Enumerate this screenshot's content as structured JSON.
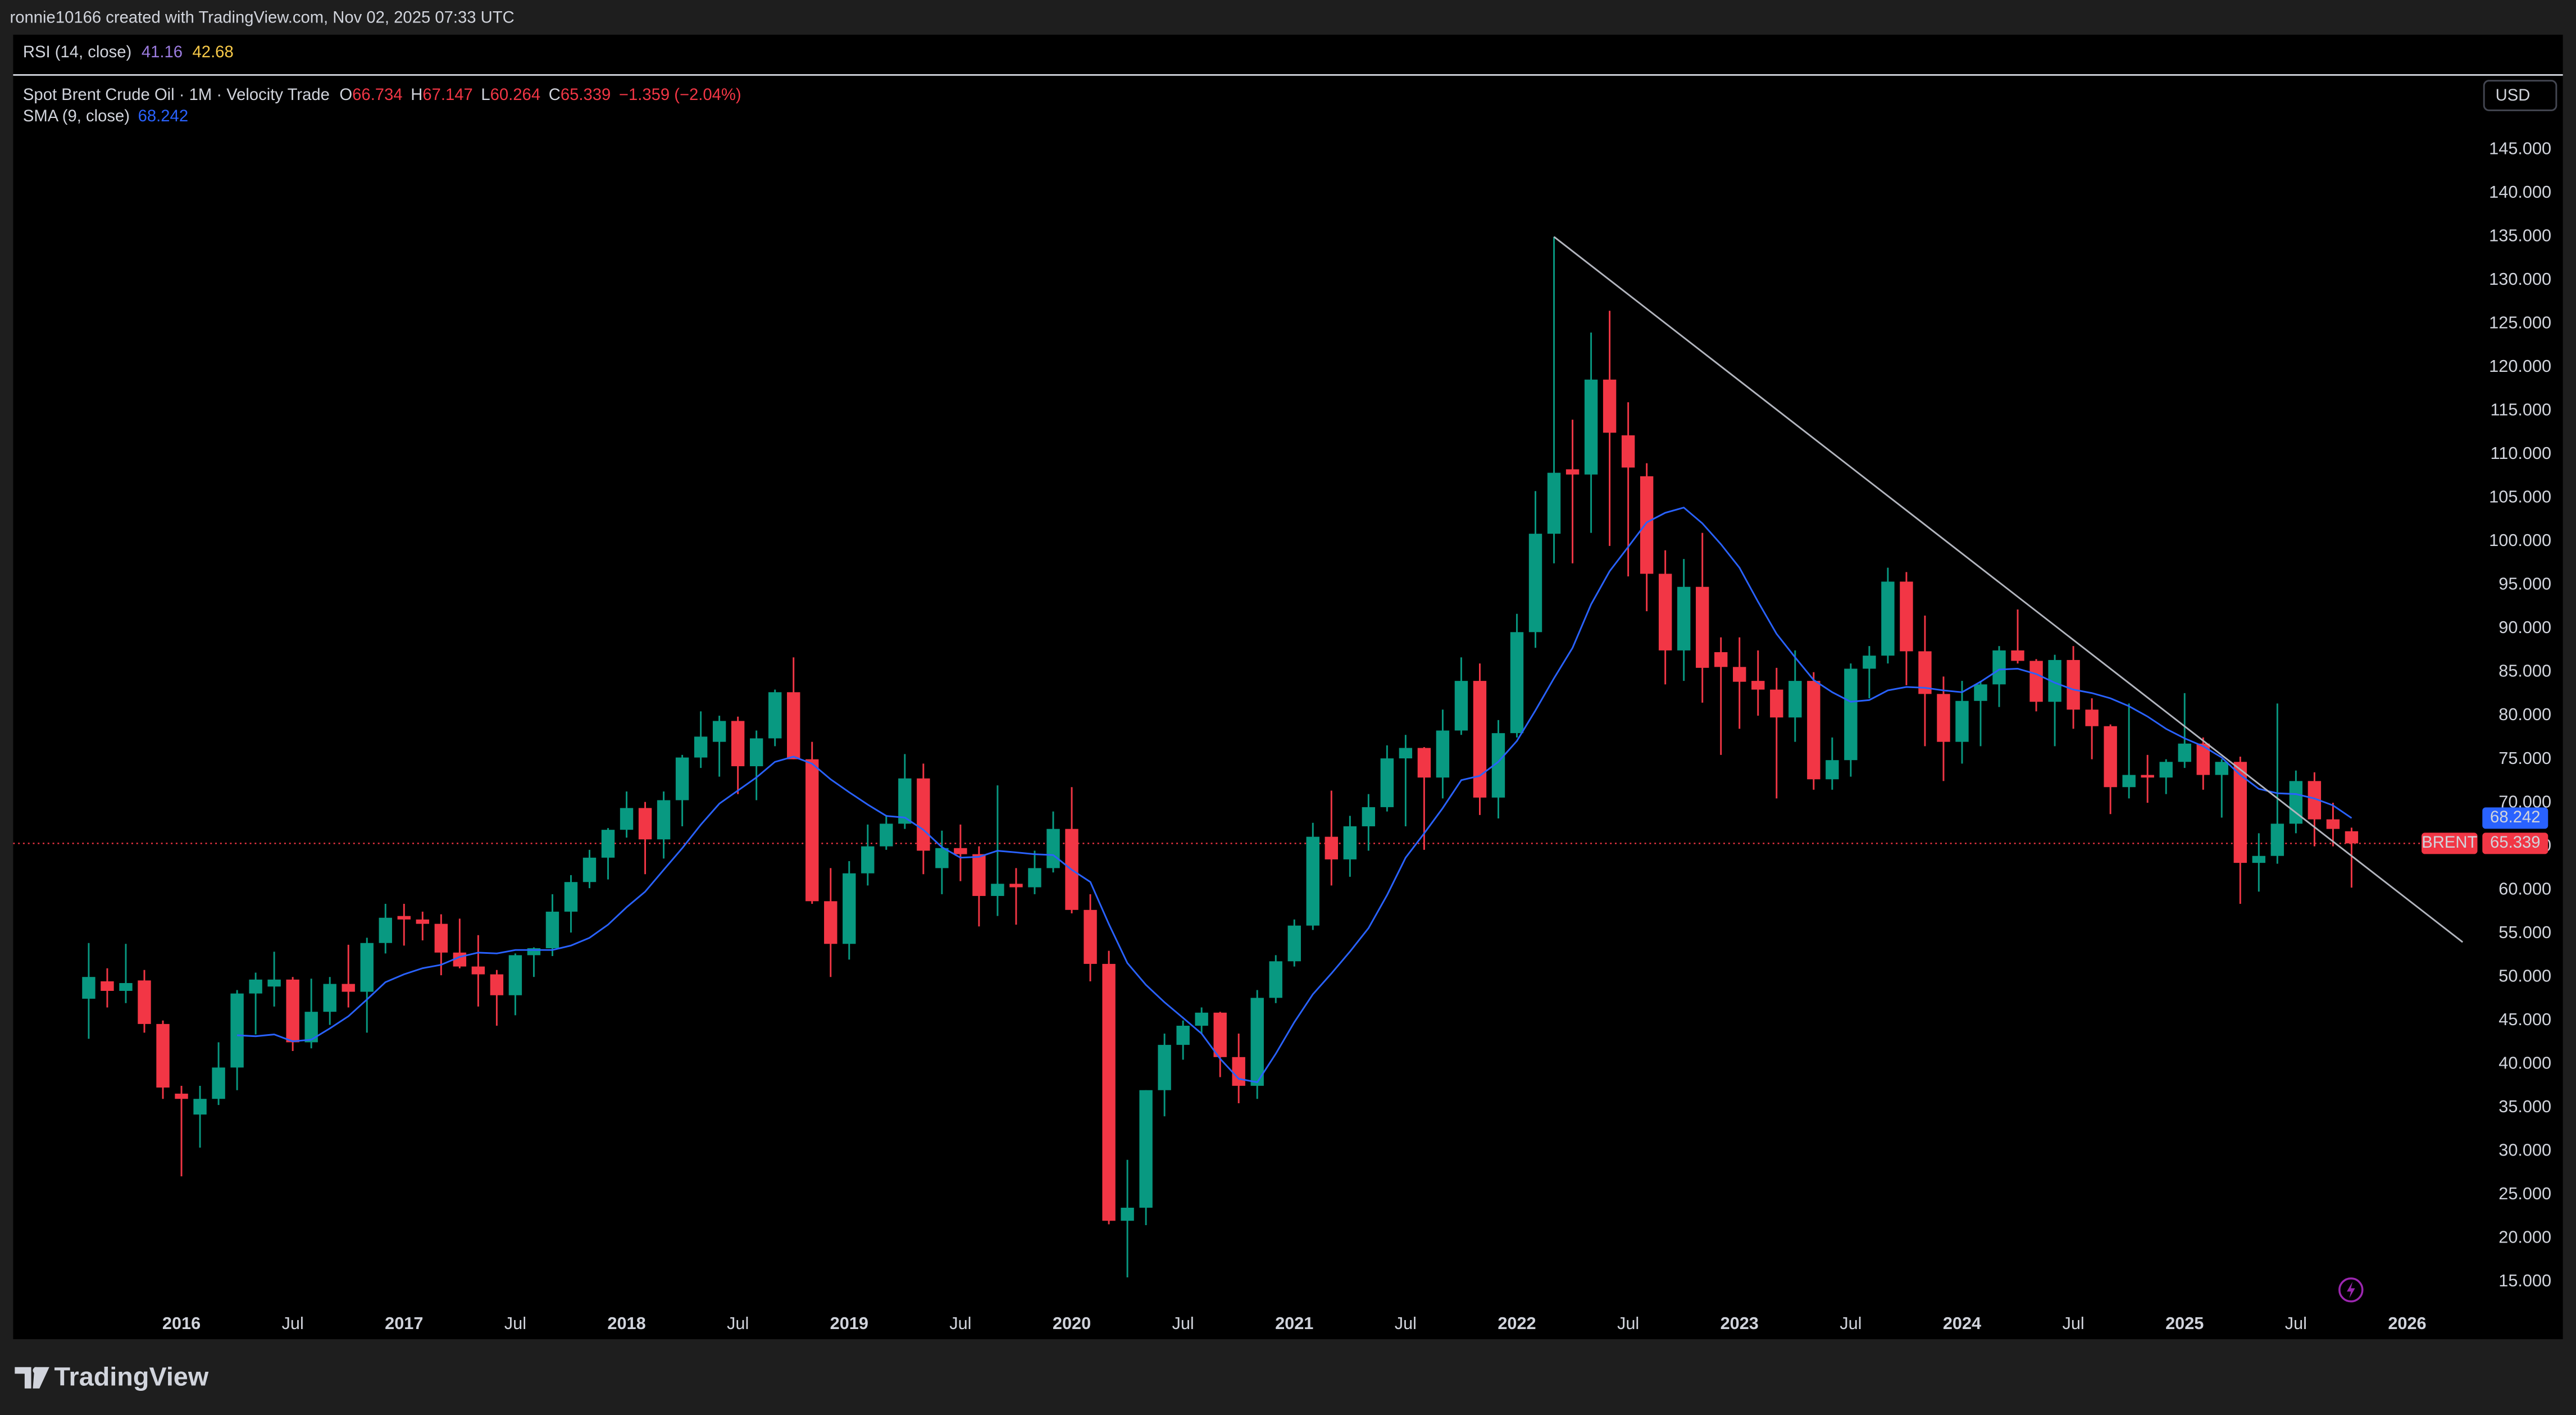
{
  "header": {
    "caption": "ronnie10166 created with TradingView.com, Nov 02, 2025 07:33 UTC"
  },
  "rsi": {
    "label": "RSI (14, close)",
    "values": [
      41.16,
      42.68
    ]
  },
  "footer": {
    "brand": "TradingView"
  },
  "chart_data": {
    "type": "candlestick",
    "title": "Spot Brent Crude Oil · 1M · Velocity Trade",
    "ohlc_keys": [
      "O",
      "H",
      "L",
      "C"
    ],
    "change_label": "−1.359 (−2.04%)",
    "currency": "USD",
    "categories": [
      null,
      null,
      null,
      null,
      null,
      "2016",
      null,
      null,
      null,
      null,
      null,
      "Jul",
      null,
      null,
      null,
      null,
      null,
      "2017",
      null,
      null,
      null,
      null,
      null,
      "Jul",
      null,
      null,
      null,
      null,
      null,
      "2018",
      null,
      null,
      null,
      null,
      null,
      "Jul",
      null,
      null,
      null,
      null,
      null,
      "2019",
      null,
      null,
      null,
      null,
      null,
      "Jul",
      null,
      null,
      null,
      null,
      null,
      "2020",
      null,
      null,
      null,
      null,
      null,
      "Jul",
      null,
      null,
      null,
      null,
      null,
      "2021",
      null,
      null,
      null,
      null,
      null,
      "Jul",
      null,
      null,
      null,
      null,
      null,
      "2022",
      null,
      null,
      null,
      null,
      null,
      "Jul",
      null,
      null,
      null,
      null,
      null,
      "2023",
      null,
      null,
      null,
      null,
      null,
      "Jul",
      null,
      null,
      null,
      null,
      null,
      "2024",
      null,
      null,
      null,
      null,
      null,
      "Jul",
      null,
      null,
      null,
      null,
      null,
      "2025",
      null,
      null,
      null,
      null,
      null,
      "Jul",
      null,
      null,
      null,
      null,
      null,
      "2026"
    ],
    "series": [
      {
        "name": "BRENT",
        "up_color": "#089981",
        "down_color": "#f23645",
        "open": [
          47.5,
          49.5,
          48.4,
          49.6,
          44.6,
          36.6,
          34.2,
          36.0,
          39.6,
          48.1,
          48.9,
          49.7,
          42.5,
          46.0,
          49.2,
          48.3,
          53.9,
          57.0,
          56.6,
          56.1,
          52.8,
          51.2,
          50.3,
          47.9,
          52.5,
          53.3,
          57.5,
          60.9,
          63.7,
          66.9,
          69.4,
          65.8,
          70.3,
          75.2,
          77.0,
          79.4,
          74.2,
          77.4,
          82.7,
          75.0,
          58.7,
          53.8,
          61.9,
          65.0,
          67.6,
          72.8,
          62.5,
          64.8,
          64.1,
          59.3,
          60.7,
          60.3,
          62.5,
          67.0,
          57.7,
          51.5,
          22.0,
          23.5,
          37.0,
          42.2,
          44.4,
          45.9,
          40.8,
          37.5,
          47.6,
          51.8,
          55.9,
          66.1,
          63.5,
          67.3,
          69.5,
          75.1,
          76.3,
          72.9,
          78.3,
          84.0,
          70.6,
          78.0,
          89.6,
          100.9,
          108.3,
          107.7,
          118.6,
          112.2,
          107.5,
          96.3,
          87.5,
          94.8,
          87.3,
          85.6,
          84.0,
          83.0,
          79.8,
          84.0,
          72.7,
          74.9,
          85.4,
          86.9,
          95.4,
          87.4,
          82.5,
          77.0,
          81.7,
          83.6,
          87.5,
          86.3,
          81.6,
          86.4,
          80.7,
          78.8,
          71.8,
          73.2,
          72.9,
          74.7,
          76.8,
          73.2,
          74.7,
          63.1,
          63.9,
          67.6,
          72.5,
          68.1,
          66.734,
          null,
          null,
          null
        ],
        "high": [
          53.9,
          51.0,
          53.8,
          50.8,
          45.0,
          37.5,
          37.5,
          42.5,
          48.5,
          50.5,
          52.9,
          50.0,
          49.8,
          50.0,
          53.7,
          54.5,
          58.4,
          58.4,
          57.5,
          57.2,
          56.7,
          54.8,
          50.8,
          52.7,
          53.4,
          59.5,
          61.7,
          64.6,
          67.1,
          71.3,
          70.1,
          71.3,
          75.5,
          80.5,
          80.0,
          79.9,
          78.3,
          83.0,
          86.7,
          77.0,
          62.5,
          63.3,
          67.5,
          68.6,
          75.6,
          74.5,
          66.8,
          67.5,
          65.0,
          72.0,
          62.5,
          64.5,
          69.0,
          71.8,
          59.5,
          53.0,
          29.0,
          37.0,
          43.5,
          45.0,
          46.5,
          46.0,
          43.5,
          48.5,
          52.5,
          56.6,
          67.7,
          71.4,
          68.5,
          71.0,
          76.6,
          77.8,
          76.4,
          80.7,
          86.7,
          86.0,
          79.5,
          91.7,
          105.8,
          135.0,
          114.0,
          124.0,
          126.5,
          116.0,
          109.0,
          99.0,
          98.0,
          101.0,
          89.0,
          89.0,
          87.5,
          85.5,
          87.5,
          85.0,
          77.5,
          86.0,
          88.0,
          97.0,
          96.5,
          91.5,
          84.5,
          84.0,
          84.0,
          88.0,
          92.2,
          86.5,
          87.0,
          88.0,
          82.0,
          79.0,
          81.4,
          75.5,
          75.0,
          82.6,
          77.5,
          75.0,
          75.3,
          66.5,
          81.4,
          73.7,
          73.5,
          70.0,
          67.147,
          null,
          null,
          null
        ],
        "low": [
          42.9,
          46.5,
          47.0,
          43.6,
          36.0,
          27.1,
          30.4,
          35.3,
          37.0,
          43.4,
          46.6,
          41.5,
          41.8,
          44.5,
          46.5,
          43.6,
          52.7,
          53.6,
          54.2,
          50.2,
          51.0,
          46.6,
          44.4,
          45.6,
          50.0,
          52.4,
          55.1,
          60.2,
          61.2,
          66.0,
          61.8,
          63.6,
          67.3,
          74.0,
          73.0,
          71.0,
          70.3,
          76.5,
          75.0,
          58.4,
          50.0,
          52.0,
          60.5,
          64.6,
          67.0,
          61.8,
          59.5,
          61.0,
          55.8,
          57.0,
          56.0,
          59.5,
          62.0,
          57.3,
          49.5,
          21.6,
          15.5,
          21.5,
          34.0,
          40.5,
          43.5,
          38.5,
          35.5,
          36.0,
          47.0,
          51.2,
          55.4,
          60.5,
          61.5,
          64.5,
          69.0,
          67.3,
          64.6,
          70.5,
          77.8,
          68.6,
          68.2,
          77.5,
          87.8,
          97.5,
          97.5,
          101.0,
          99.5,
          96.0,
          92.0,
          83.6,
          84.0,
          81.5,
          75.5,
          78.5,
          80.0,
          70.5,
          77.0,
          71.5,
          71.5,
          73.0,
          82.0,
          86.0,
          83.5,
          76.5,
          72.5,
          74.5,
          76.5,
          81.0,
          86.0,
          80.5,
          76.5,
          78.5,
          75.0,
          68.7,
          70.5,
          70.0,
          71.0,
          74.0,
          71.5,
          68.3,
          58.4,
          59.8,
          63.0,
          66.5,
          65.0,
          65.0,
          60.264,
          null,
          null,
          null
        ],
        "close": [
          50.0,
          48.4,
          49.3,
          44.6,
          37.3,
          36.0,
          36.0,
          39.6,
          48.1,
          49.7,
          49.7,
          42.5,
          46.0,
          49.2,
          48.3,
          53.9,
          56.8,
          56.6,
          56.1,
          52.8,
          51.2,
          50.3,
          47.9,
          52.5,
          53.3,
          57.5,
          60.9,
          63.7,
          66.9,
          69.4,
          65.8,
          70.3,
          75.2,
          77.6,
          79.4,
          74.2,
          77.4,
          82.7,
          75.0,
          58.7,
          53.8,
          61.9,
          65.0,
          67.6,
          72.8,
          64.5,
          64.8,
          64.1,
          59.3,
          60.7,
          60.3,
          62.5,
          67.0,
          57.7,
          51.5,
          22.0,
          23.5,
          37.0,
          42.2,
          44.4,
          45.9,
          40.8,
          37.5,
          47.6,
          51.8,
          55.9,
          66.1,
          63.5,
          67.3,
          69.5,
          75.1,
          76.3,
          72.9,
          78.3,
          84.0,
          70.6,
          78.0,
          89.6,
          100.9,
          107.9,
          107.7,
          118.6,
          112.5,
          108.5,
          96.3,
          87.5,
          94.8,
          85.5,
          85.6,
          83.9,
          83.0,
          79.8,
          84.0,
          72.7,
          74.9,
          85.4,
          86.9,
          95.4,
          87.4,
          82.5,
          77.0,
          81.7,
          83.6,
          87.5,
          86.3,
          81.6,
          86.4,
          80.7,
          78.8,
          71.8,
          73.2,
          72.9,
          74.7,
          76.8,
          73.2,
          74.7,
          63.1,
          63.9,
          67.6,
          72.5,
          68.1,
          67.0,
          65.339,
          null,
          null,
          null
        ]
      }
    ],
    "sma": {
      "name": "SMA (9, close)",
      "color": "#2962ff",
      "values": [
        null,
        null,
        null,
        null,
        null,
        null,
        null,
        null,
        43.3,
        43.2,
        43.4,
        42.6,
        42.8,
        44.1,
        45.5,
        47.4,
        49.4,
        50.3,
        51.0,
        51.4,
        52.3,
        52.8,
        52.7,
        53.1,
        53.1,
        53.1,
        53.6,
        54.5,
        56.0,
        58.0,
        59.8,
        62.3,
        64.8,
        67.5,
        69.9,
        71.4,
        72.9,
        74.7,
        75.3,
        74.5,
        72.7,
        71.2,
        69.8,
        68.5,
        68.3,
        66.9,
        64.9,
        63.7,
        63.8,
        64.5,
        64.3,
        64.1,
        64.0,
        62.3,
        60.9,
        56.1,
        51.6,
        49.1,
        47.1,
        45.3,
        43.5,
        40.6,
        38.3,
        37.9,
        41.2,
        44.8,
        48.0,
        50.4,
        52.9,
        55.6,
        59.4,
        63.7,
        66.5,
        69.4,
        72.6,
        73.1,
        74.7,
        77.1,
        80.6,
        84.3,
        87.8,
        92.8,
        96.6,
        99.4,
        102.2,
        103.3,
        103.9,
        102.1,
        99.7,
        97.0,
        93.1,
        89.4,
        86.7,
        84.1,
        82.7,
        81.6,
        81.8,
        82.9,
        83.3,
        83.2,
        82.9,
        82.7,
        83.9,
        85.3,
        85.4,
        84.8,
        83.8,
        83.0,
        82.6,
        82.0,
        81.1,
        79.9,
        78.5,
        77.4,
        76.5,
        75.2,
        73.2,
        71.6,
        71.1,
        71.0,
        70.5,
        69.7,
        68.242,
        null,
        null,
        null
      ]
    },
    "trend_line": {
      "start": 135,
      "end": 54,
      "color": "#b2b5be"
    },
    "grid": false,
    "ylim": [
      8.4,
      153.3
    ],
    "yticks": [
      {
        "value": 15,
        "label": "15.000"
      },
      {
        "value": 20,
        "label": "20.000"
      },
      {
        "value": 25,
        "label": "25.000"
      },
      {
        "value": 30,
        "label": "30.000"
      },
      {
        "value": 35,
        "label": "35.000"
      },
      {
        "value": 40,
        "label": "40.000"
      },
      {
        "value": 45,
        "label": "45.000"
      },
      {
        "value": 50,
        "label": "50.000"
      },
      {
        "value": 55,
        "label": "55.000"
      },
      {
        "value": 60,
        "label": "60.000"
      },
      {
        "value": 65,
        "label": "65.000"
      },
      {
        "value": 70,
        "label": "70.000"
      },
      {
        "value": 75,
        "label": "75.000"
      },
      {
        "value": 80,
        "label": "80.000"
      },
      {
        "value": 85,
        "label": "85.000"
      },
      {
        "value": 90,
        "label": "90.000"
      },
      {
        "value": 95,
        "label": "95.000"
      },
      {
        "value": 100,
        "label": "100.000"
      },
      {
        "value": 105,
        "label": "105.000"
      },
      {
        "value": 110,
        "label": "110.000"
      },
      {
        "value": 115,
        "label": "115.000"
      },
      {
        "value": 120,
        "label": "120.000"
      },
      {
        "value": 125,
        "label": "125.000"
      },
      {
        "value": 130,
        "label": "130.000"
      },
      {
        "value": 135,
        "label": "135.000"
      },
      {
        "value": 140,
        "label": "140.000"
      },
      {
        "value": 145,
        "label": "145.000"
      }
    ]
  }
}
